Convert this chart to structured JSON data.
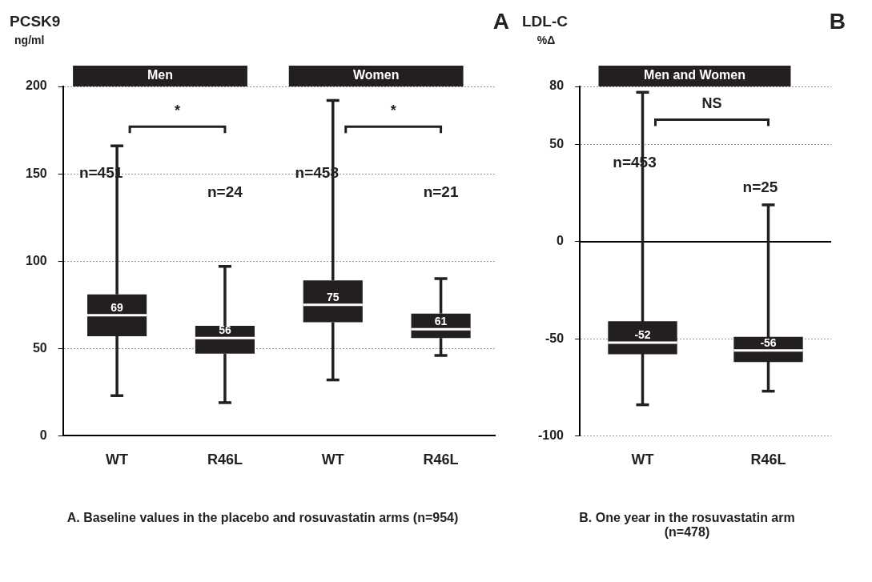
{
  "chart_data": [
    {
      "type": "box",
      "title": "A",
      "ylabel": "PCSK9\nng/ml",
      "categories": [
        "WT",
        "R46L",
        "WT",
        "R46L"
      ],
      "color": "#231f20",
      "ylim": [
        0,
        200
      ],
      "yticks": [
        0,
        50,
        100,
        150,
        200
      ],
      "grid": "y",
      "value_labels": [
        "69",
        "56",
        "75",
        "61"
      ],
      "boxes": [
        {
          "low": 23,
          "q1": 57,
          "median": 69,
          "q3": 81,
          "high": 166
        },
        {
          "low": 19,
          "q1": 47,
          "median": 56,
          "q3": 63,
          "high": 97
        },
        {
          "low": 32,
          "q1": 65,
          "median": 75,
          "q3": 89,
          "high": 192
        },
        {
          "low": 46,
          "q1": 56,
          "median": 61,
          "q3": 70,
          "high": 90
        }
      ],
      "annotations": [
        "Men",
        "Women",
        "*",
        "*",
        "n=451",
        "n=24",
        "n=458",
        "n=21",
        "A.    Baseline values in the placebo and rosuvastatin arms (n=954)"
      ]
    },
    {
      "type": "box",
      "title": "B",
      "ylabel": "LDL-C\n%Δ",
      "categories": [
        "WT",
        "R46L"
      ],
      "color": "#231f20",
      "ylim": [
        -100,
        80
      ],
      "yticks": [
        -100,
        -50,
        0,
        50,
        80
      ],
      "grid": "y",
      "value_labels": [
        "-52",
        "-56"
      ],
      "ref_lines": [
        {
          "axis": "y",
          "value": 0
        }
      ],
      "boxes": [
        {
          "low": -84,
          "q1": -58,
          "median": -52,
          "q3": -41,
          "high": 77
        },
        {
          "low": -77,
          "q1": -62,
          "median": -56,
          "q3": -49,
          "high": 19
        }
      ],
      "annotations": [
        "Men and Women",
        "NS",
        "n=453",
        "n=25",
        "B. One year in the rosuvastatin arm (n=478)"
      ]
    }
  ]
}
